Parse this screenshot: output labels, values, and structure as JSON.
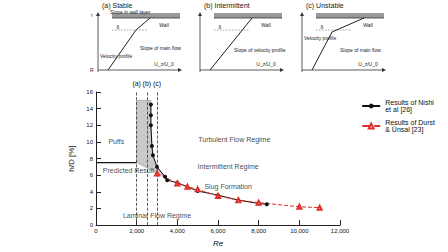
{
  "chart_data": {
    "type": "line",
    "x_label": "Re",
    "y_label": "h/D [%]",
    "xlim": [
      0,
      12000
    ],
    "xticks": [
      0,
      2000,
      4000,
      6000,
      8000,
      10000,
      12000
    ],
    "ylim": [
      0,
      16
    ],
    "yticks": [
      0,
      2,
      4,
      6,
      8,
      10,
      12,
      14,
      16
    ],
    "grid": false,
    "legend": "upper right",
    "series": [
      {
        "name": "Results of Nishi\net al [26]",
        "color": "#111111",
        "marker": "circle",
        "line_style": "solid",
        "x": [
          2700,
          2700,
          2700,
          2750,
          2800,
          3000,
          3400,
          3500,
          4000,
          5000,
          6000,
          7000,
          8000,
          8400
        ],
        "values": [
          14.5,
          13.2,
          12,
          9.5,
          8.4,
          7,
          5.8,
          5.4,
          5.1,
          4.1,
          3.6,
          3.0,
          2.6,
          2.5
        ]
      },
      {
        "name": "Results of Durst\n& Ünsal [23]",
        "color": "#e0302a",
        "marker": "open_triangle",
        "line_style": "dashed",
        "x": [
          3000,
          4000,
          4500,
          5000,
          6000,
          7000,
          8000,
          10000,
          11000
        ],
        "values": [
          6.2,
          5.0,
          4.6,
          4.3,
          3.5,
          3.0,
          2.7,
          2.2,
          2.1
        ]
      }
    ],
    "predicted": {
      "label": "Predicted Result",
      "x": [
        0,
        2000
      ],
      "values": [
        7.5,
        7.5
      ],
      "color": "#111111"
    },
    "shaded_region": {
      "x": [
        2000,
        2700,
        2700,
        2750,
        2800,
        3000,
        3400,
        2000
      ],
      "y": [
        15,
        15,
        12,
        9.5,
        8.4,
        7,
        5.8,
        7.5
      ],
      "color": "#888888"
    },
    "vertical_lines": [
      {
        "label": "(a)",
        "x": 2000
      },
      {
        "label": "(b)",
        "x": 2500
      },
      {
        "label": "(c)",
        "x": 3000
      }
    ],
    "annotations": [
      {
        "text": "Puffs",
        "x": 1000,
        "y": 10
      },
      {
        "text": "Predicted Result",
        "x": 1600,
        "y": 6.6
      },
      {
        "text": "Turbulent Flow Regime",
        "x": 6800,
        "y": 10.3
      },
      {
        "text": "Intermittent Regime",
        "x": 6500,
        "y": 7
      },
      {
        "text": "Slug Formation",
        "x": 6500,
        "y": 4.6
      },
      {
        "text": "Laminar Flow Regime",
        "x": 3000,
        "y": 1.2
      }
    ]
  },
  "schematic": {
    "panels": [
      {
        "title": "(a) Stable",
        "labels": [
          "Slope in wall layer",
          "Wall",
          "δ",
          "U_z/U_0",
          "Slope of main flow",
          "Velocity profile",
          "R",
          "r"
        ]
      },
      {
        "title": "(b) Intermittent",
        "labels": [
          "Wall",
          "δ",
          "U_z/U_0",
          "Slope of velocity profile"
        ]
      },
      {
        "title": "(c) Unstable",
        "labels": [
          "Velocity profile",
          "Wall",
          "δ",
          "U_z/U_0",
          "Slope of main flow"
        ]
      }
    ]
  }
}
